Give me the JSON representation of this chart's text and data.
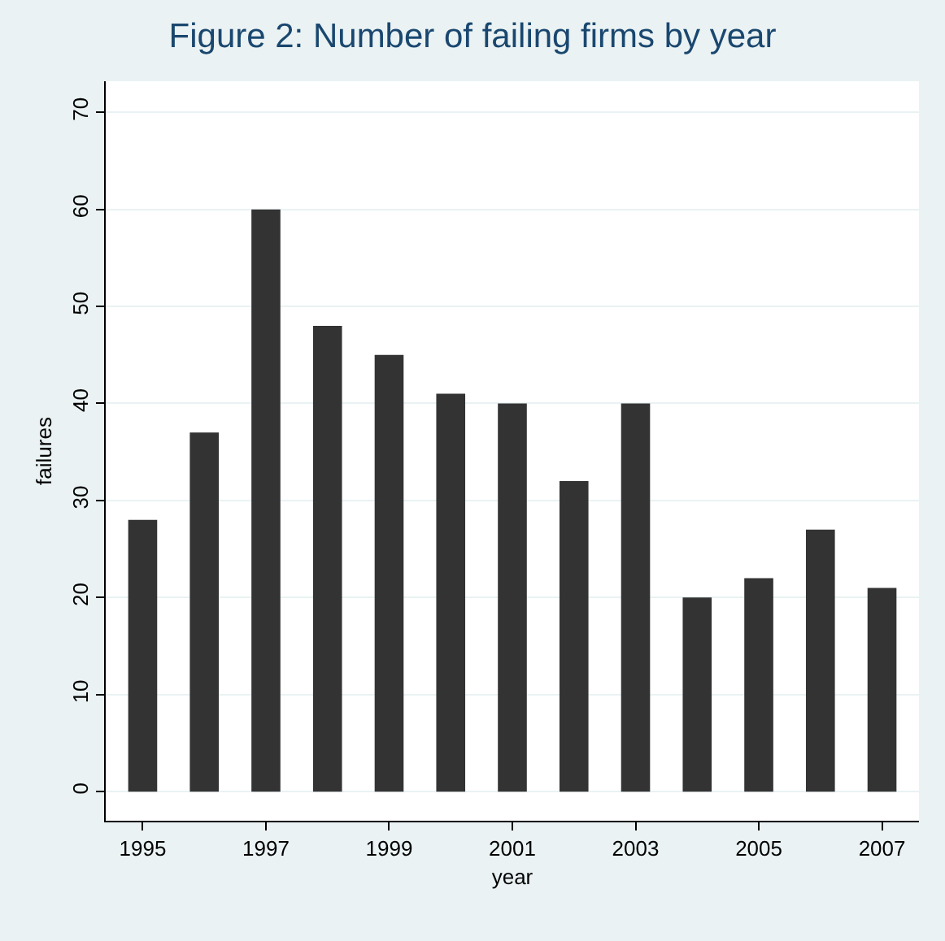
{
  "chart_data": {
    "type": "bar",
    "title": "Figure 2: Number of failing firms by year",
    "xlabel": "year",
    "ylabel": "failures",
    "x": [
      1995,
      1996,
      1997,
      1998,
      1999,
      2000,
      2001,
      2002,
      2003,
      2004,
      2005,
      2006,
      2007
    ],
    "values": [
      28,
      37,
      60,
      48,
      45,
      41,
      40,
      32,
      40,
      20,
      22,
      27,
      21
    ],
    "color": "#333333",
    "xlim": [
      1994.4,
      2007.6
    ],
    "xticks": [
      1995,
      1997,
      1999,
      2001,
      2003,
      2005,
      2007
    ],
    "ylim": [
      -3,
      73.2
    ],
    "yticks": [
      0,
      10,
      20,
      30,
      40,
      50,
      60,
      70
    ],
    "grid": "y"
  }
}
